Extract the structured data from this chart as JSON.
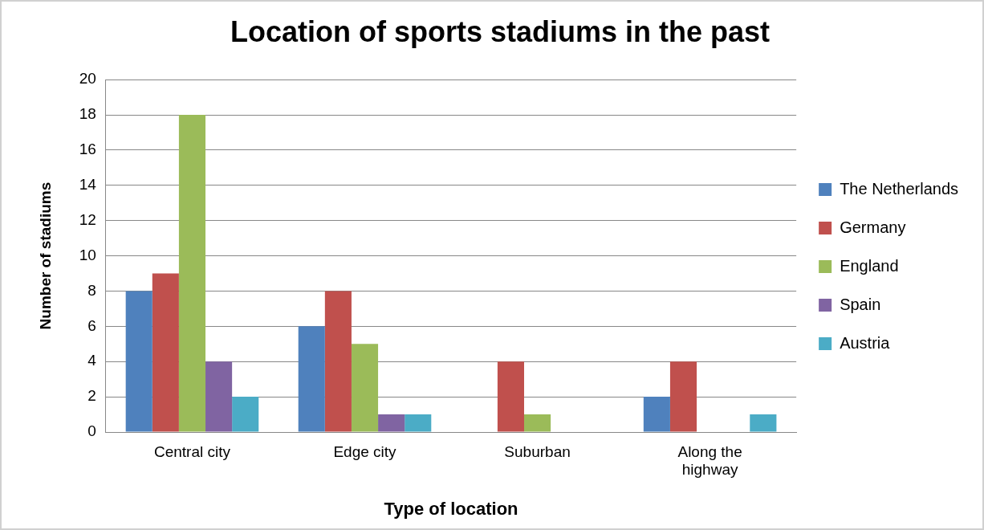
{
  "chart_data": {
    "type": "bar",
    "title": "Location of sports stadiums in the past",
    "xlabel": "Type of location",
    "ylabel": "Number of stadiums",
    "categories": [
      "Central city",
      "Edge city",
      "Suburban",
      "Along the highway"
    ],
    "series": [
      {
        "name": "The Netherlands",
        "color": "#4f81bd",
        "values": [
          8,
          6,
          0,
          2
        ]
      },
      {
        "name": "Germany",
        "color": "#c0504d",
        "values": [
          9,
          8,
          4,
          4
        ]
      },
      {
        "name": "England",
        "color": "#9bbb59",
        "values": [
          18,
          5,
          1,
          0
        ]
      },
      {
        "name": "Spain",
        "color": "#8064a2",
        "values": [
          4,
          1,
          0,
          0
        ]
      },
      {
        "name": "Austria",
        "color": "#4bacc6",
        "values": [
          2,
          1,
          0,
          1
        ]
      }
    ],
    "ylim": [
      0,
      20
    ],
    "yticks": [
      0,
      2,
      4,
      6,
      8,
      10,
      12,
      14,
      16,
      18,
      20
    ],
    "grid": "y",
    "legend": "right"
  }
}
